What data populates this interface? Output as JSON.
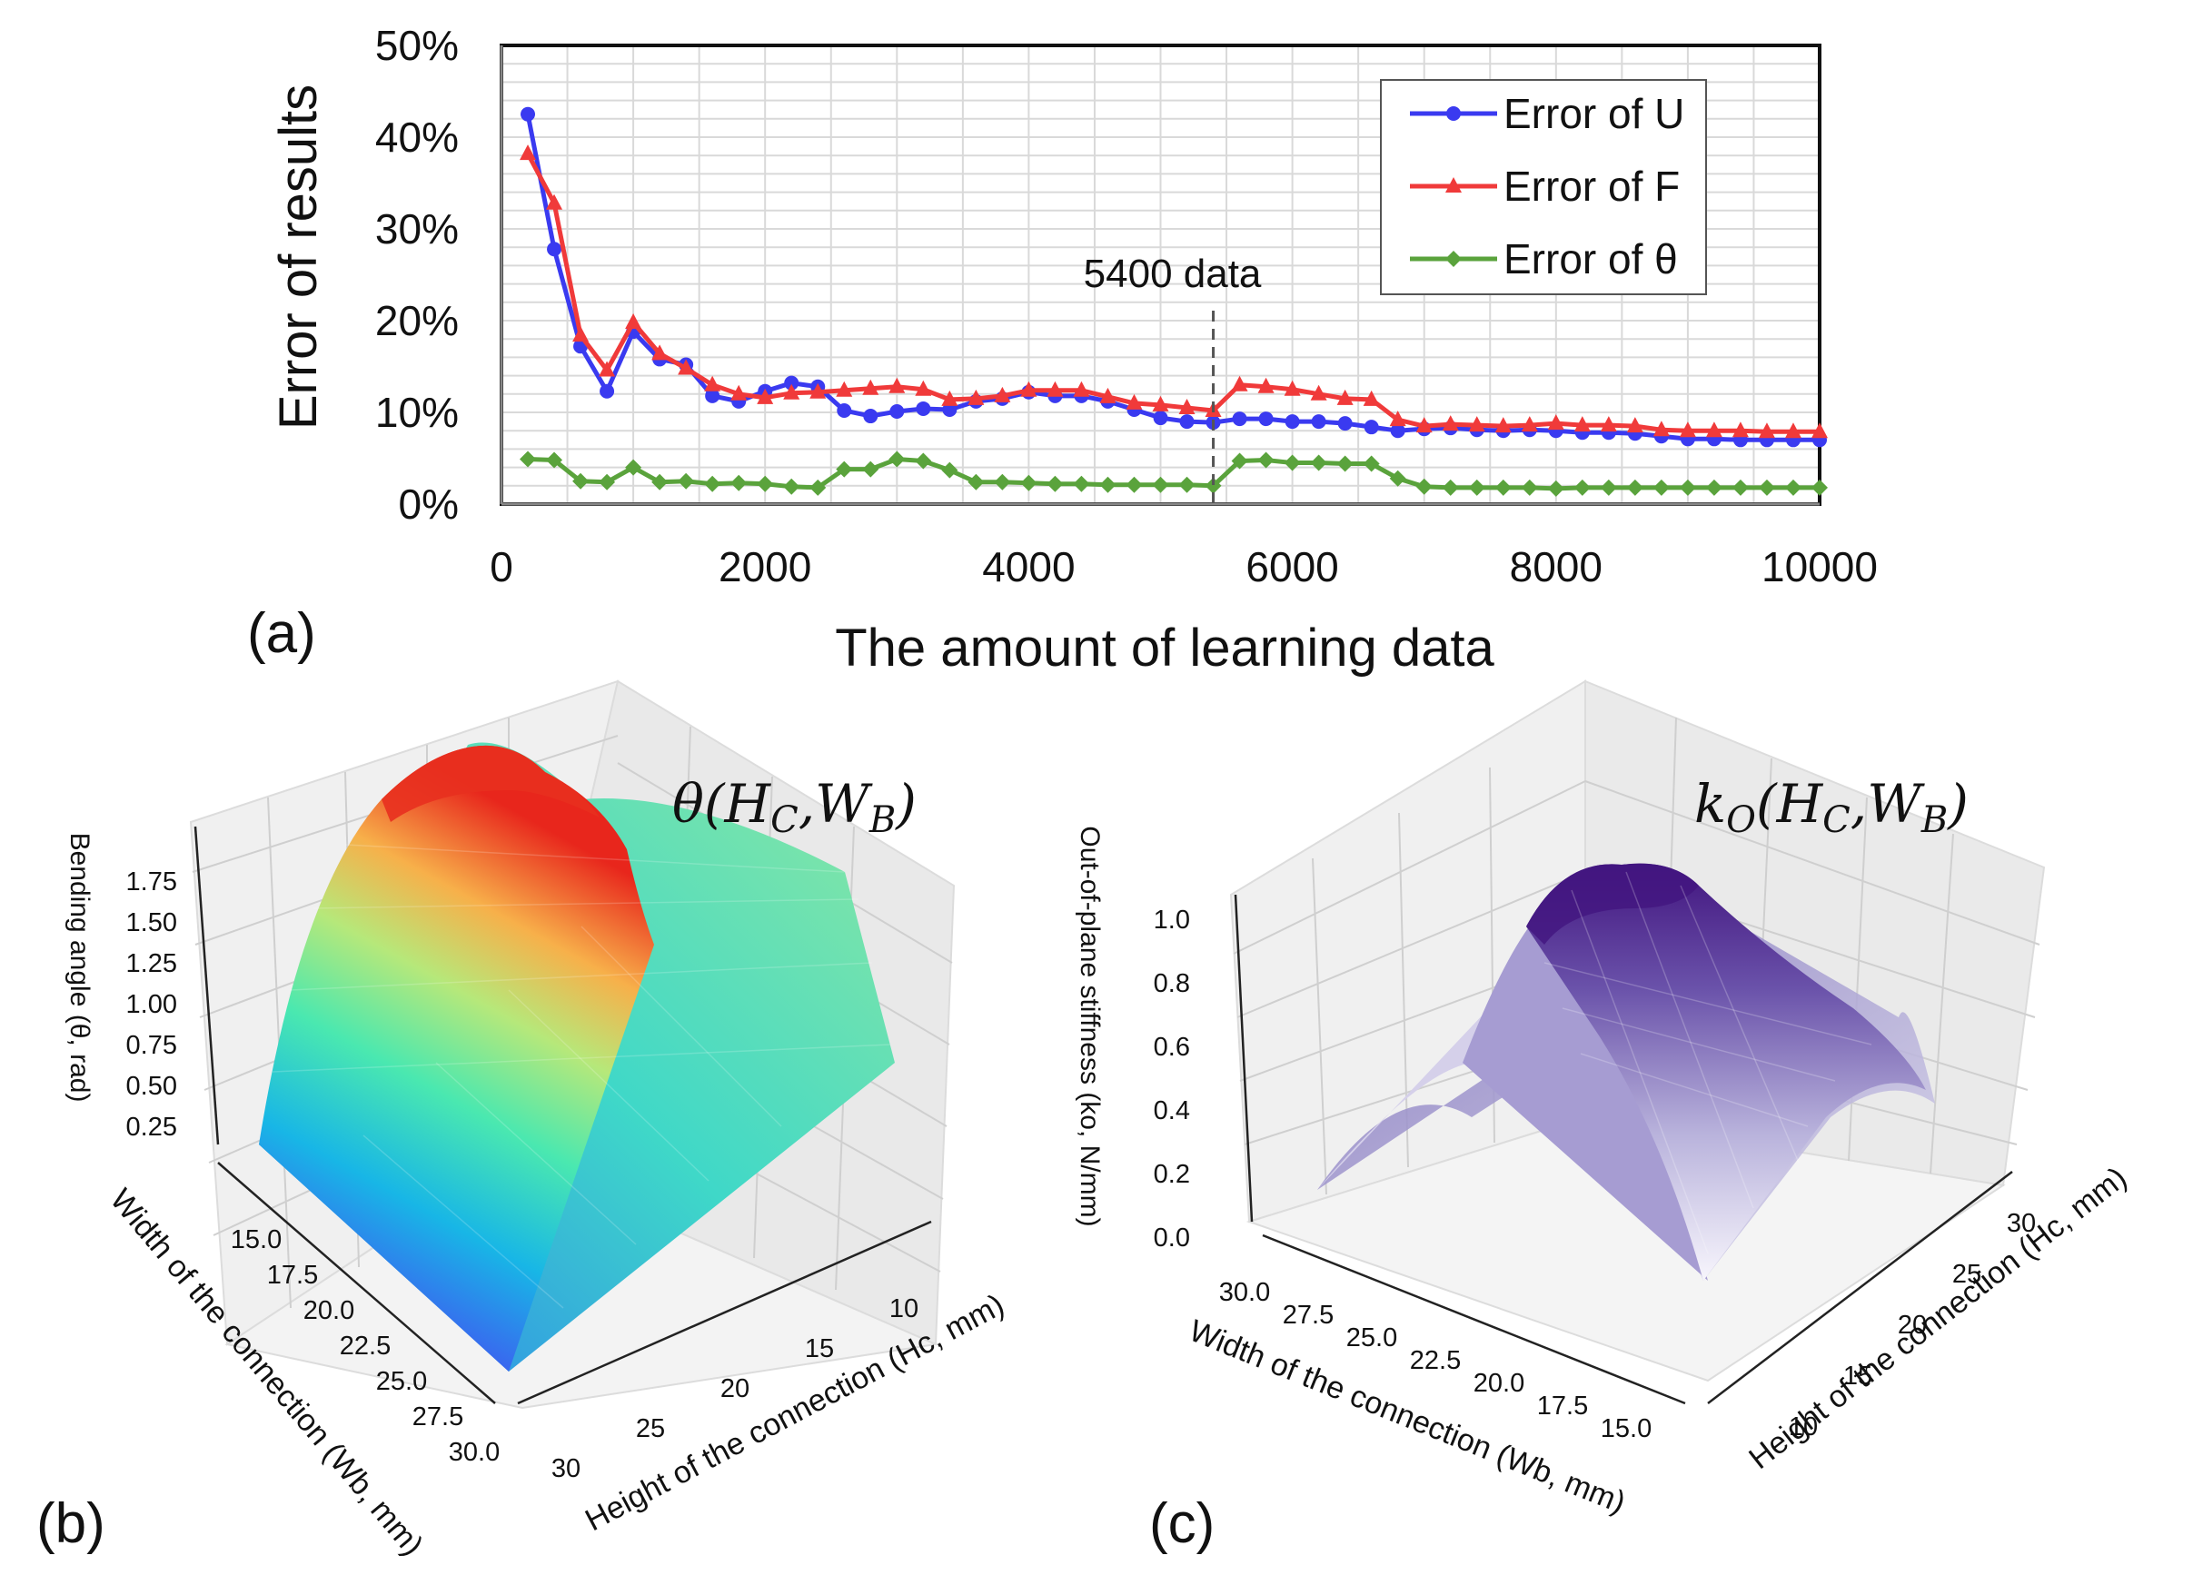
{
  "chart_data": [
    {
      "panel": "(a)",
      "type": "line",
      "title": "",
      "xlabel": "The amount of learning data",
      "ylabel": "Error of results",
      "xlim": [
        0,
        10000
      ],
      "ylim": [
        0,
        50
      ],
      "x_ticks": [
        "0",
        "2000",
        "4000",
        "6000",
        "8000",
        "10000"
      ],
      "y_ticks": [
        "0%",
        "10%",
        "20%",
        "30%",
        "40%",
        "50%"
      ],
      "grid": true,
      "legend_position": "top-right",
      "annotation": {
        "label": "5400 data",
        "x": 5400
      },
      "x": [
        200,
        400,
        600,
        800,
        1000,
        1200,
        1400,
        1600,
        1800,
        2000,
        2200,
        2400,
        2600,
        2800,
        3000,
        3200,
        3400,
        3600,
        3800,
        4000,
        4200,
        4400,
        4600,
        4800,
        5000,
        5200,
        5400,
        5600,
        5800,
        6000,
        6200,
        6400,
        6600,
        6800,
        7000,
        7200,
        7400,
        7600,
        7800,
        8000,
        8200,
        8400,
        8600,
        8800,
        9000,
        9200,
        9400,
        9600,
        9800,
        10000
      ],
      "series": [
        {
          "name": "Error of U",
          "color": "#3a3af0",
          "marker": "circle",
          "values": [
            42.5,
            27.8,
            17.2,
            12.3,
            18.8,
            15.8,
            15.2,
            11.8,
            11.2,
            12.3,
            13.2,
            12.8,
            10.2,
            9.6,
            10.1,
            10.4,
            10.3,
            11.2,
            11.5,
            12.2,
            11.8,
            11.8,
            11.2,
            10.3,
            9.4,
            9.0,
            8.9,
            9.3,
            9.3,
            9.0,
            9.0,
            8.8,
            8.4,
            8.0,
            8.2,
            8.3,
            8.1,
            8.0,
            8.1,
            8.0,
            7.8,
            7.8,
            7.7,
            7.4,
            7.1,
            7.1,
            7.0,
            7.0,
            7.0,
            7.0
          ]
        },
        {
          "name": "Error of F",
          "color": "#f03a3a",
          "marker": "triangle",
          "values": [
            38.2,
            32.8,
            18.4,
            14.6,
            19.8,
            16.4,
            14.8,
            13.0,
            12.0,
            11.6,
            12.1,
            12.2,
            12.4,
            12.6,
            12.8,
            12.5,
            11.4,
            11.5,
            11.8,
            12.4,
            12.4,
            12.4,
            11.7,
            11.0,
            10.8,
            10.5,
            10.2,
            13.0,
            12.8,
            12.5,
            12.0,
            11.5,
            11.4,
            9.2,
            8.5,
            8.7,
            8.6,
            8.5,
            8.6,
            8.8,
            8.6,
            8.6,
            8.5,
            8.1,
            8.0,
            8.0,
            8.0,
            7.9,
            7.9,
            7.9
          ]
        },
        {
          "name": "Error of θ",
          "color": "#5aa33c",
          "marker": "diamond",
          "values": [
            4.9,
            4.8,
            2.5,
            2.4,
            4.0,
            2.4,
            2.5,
            2.2,
            2.3,
            2.2,
            1.9,
            1.8,
            3.8,
            3.8,
            4.9,
            4.7,
            3.7,
            2.4,
            2.4,
            2.3,
            2.2,
            2.2,
            2.1,
            2.1,
            2.1,
            2.1,
            2.0,
            4.7,
            4.8,
            4.5,
            4.5,
            4.4,
            4.4,
            2.8,
            1.9,
            1.8,
            1.8,
            1.8,
            1.8,
            1.7,
            1.8,
            1.8,
            1.8,
            1.8,
            1.8,
            1.8,
            1.8,
            1.8,
            1.8,
            1.8
          ]
        }
      ]
    },
    {
      "panel": "(b)",
      "type": "surface3d",
      "title": "θ(H_C, W_B)",
      "title_main": "θ(H",
      "title_sub1": "C",
      "title_mid": ",W",
      "title_sub2": "B",
      "title_end": ")",
      "xlabel": "Width of the connection (Wb, mm)",
      "ylabel": "Height of the connection (Hc, mm)",
      "zlabel": "Bending angle (θ, rad)",
      "x_ticks": [
        "15.0",
        "17.5",
        "20.0",
        "22.5",
        "25.0",
        "27.5",
        "30.0"
      ],
      "y_ticks": [
        "10",
        "15",
        "20",
        "25",
        "30"
      ],
      "z_ticks": [
        "1.75",
        "1.50",
        "1.25",
        "1.00",
        "0.75",
        "0.50",
        "0.25"
      ],
      "colormap": "rainbow"
    },
    {
      "panel": "(c)",
      "type": "surface3d",
      "title": "k_O(H_C, W_B)",
      "title_main": "k",
      "title_sub0": "O",
      "title_mid0": "(H",
      "title_sub1": "C",
      "title_mid": ",W",
      "title_sub2": "B",
      "title_end": ")",
      "xlabel": "Width of the connection (Wb, mm)",
      "ylabel": "Height of the connection (Hc, mm)",
      "zlabel": "Out-of-plane stiffness (ko, N/mm)",
      "x_ticks": [
        "30.0",
        "27.5",
        "25.0",
        "22.5",
        "20.0",
        "17.5",
        "15.0"
      ],
      "y_ticks": [
        "10",
        "15",
        "20",
        "25",
        "30"
      ],
      "z_ticks": [
        "1.0",
        "0.8",
        "0.6",
        "0.4",
        "0.2",
        "0.0"
      ],
      "colormap": "purples"
    }
  ],
  "panel_labels": {
    "a": "(a)",
    "b": "(b)",
    "c": "(c)"
  }
}
